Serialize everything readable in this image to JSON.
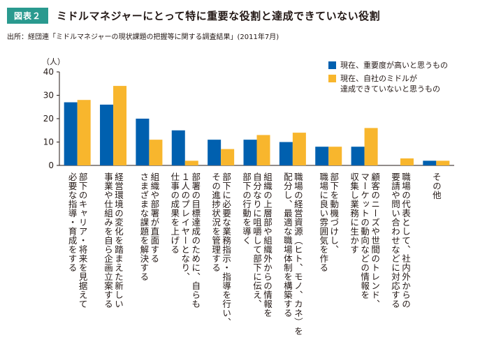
{
  "header": {
    "badge": "図表２",
    "title": "ミドルマネジャーにとって特に重要な役割と達成できていない役割",
    "source": "出所：経団連「ミドルマネジャーの現状課題の把握等に関する調査結果」(2011年7月)"
  },
  "colors": {
    "series1": "#0060af",
    "series2": "#f8b62d",
    "badge": "#2a9a8f",
    "axis": "#231815"
  },
  "chart_data": {
    "type": "bar",
    "ylabel": "（人）",
    "ylim": [
      0,
      40
    ],
    "yticks": [
      0,
      10,
      20,
      30,
      40
    ],
    "legend_position": "top-right",
    "categories": [
      "部下のキャリア・将来を見据えて\n必要な指導・育成をする",
      "経営環境の変化を踏まえた新しい\n事業や仕組みを自ら企画立案する",
      "組織や部署が直面する\nさまざまな課題を解決する",
      "部署の目標達成のために、自らも\n１人のプレイヤーとなり、\n仕事の成果を上げる",
      "部下に必要な業務指示・指導を行い、\nその進捗状況を管理する",
      "組織の上層部や組織外からの情報を\n自分なりに咀嚼して部下に伝え、\n部下の行動を導く",
      "職場の経営資源（ヒト、モノ、カネ）を\n配分し、最適な職場体制を構築する",
      "部下を動機づけし、\n職場に良い雰囲気を作る",
      "顧客のニーズや世間のトレンド、\nマーケットの動向などの情報を\n収集し業務に生かす",
      "職場の代表として、社内外からの\n要請や問い合わせなどに対応する",
      "その他"
    ],
    "series": [
      {
        "name": "現在、重要度が高いと思うもの",
        "values": [
          27,
          26,
          20,
          15,
          11,
          11,
          10,
          8,
          8,
          0,
          2
        ]
      },
      {
        "name": "現在、自社のミドルが\n達成できていないと思うもの",
        "values": [
          28,
          34,
          11,
          2,
          7,
          13,
          14,
          8,
          16,
          3,
          2
        ]
      }
    ]
  }
}
